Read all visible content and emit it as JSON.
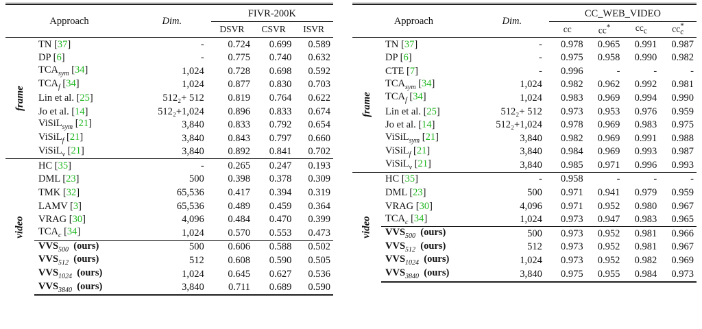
{
  "colors": {
    "citation": "#1fb61f",
    "rule": "#111111"
  },
  "left_table": {
    "header": {
      "approach": "Approach",
      "dim": "Dim.",
      "dataset": "FIVR-200K",
      "cols": [
        "DSVR",
        "CSVR",
        "ISVR"
      ]
    },
    "groups": {
      "frame": "frame",
      "video": "video"
    },
    "frame_rows": [
      {
        "name": "TN",
        "sub": "",
        "cite": "37",
        "dim": "-",
        "v": [
          "0.724",
          "0.699",
          "0.589"
        ],
        "bold": []
      },
      {
        "name": "DP",
        "sub": "",
        "cite": "6",
        "dim": "-",
        "v": [
          "0.775",
          "0.740",
          "0.632"
        ],
        "bold": []
      },
      {
        "name": "TCA",
        "sub": "sym",
        "cite": "34",
        "dim": "1,024",
        "v": [
          "0.728",
          "0.698",
          "0.592"
        ],
        "bold": []
      },
      {
        "name": "TCA",
        "sub": "f",
        "cite": "34",
        "dim": "1,024",
        "v": [
          "0.877",
          "0.830",
          "0.703"
        ],
        "bold": [
          2
        ]
      },
      {
        "name": "Lin et al.",
        "sub": "",
        "cite": "25",
        "dim": "512₂+  512",
        "v": [
          "0.819",
          "0.764",
          "0.622"
        ],
        "bold": []
      },
      {
        "name": "Jo et al.",
        "sub": "",
        "cite": "14",
        "dim": "512₂+1,024",
        "v": [
          "0.896",
          "0.833",
          "0.674"
        ],
        "bold": [
          0
        ]
      },
      {
        "name": "ViSiL",
        "sub": "sym",
        "cite": "21",
        "dim": "3,840",
        "v": [
          "0.833",
          "0.792",
          "0.654"
        ],
        "bold": []
      },
      {
        "name": "ViSiL",
        "sub": "f",
        "cite": "21",
        "dim": "3,840",
        "v": [
          "0.843",
          "0.797",
          "0.660"
        ],
        "bold": []
      },
      {
        "name": "ViSiL",
        "sub": "v",
        "cite": "21",
        "dim": "3,840",
        "v": [
          "0.892",
          "0.841",
          "0.702"
        ],
        "bold": [
          1
        ]
      }
    ],
    "video_rows": [
      {
        "name": "HC",
        "sub": "",
        "cite": "35",
        "dim": "-",
        "v": [
          "0.265",
          "0.247",
          "0.193"
        ],
        "bold": []
      },
      {
        "name": "DML",
        "sub": "",
        "cite": "23",
        "dim": "500",
        "v": [
          "0.398",
          "0.378",
          "0.309"
        ],
        "bold": []
      },
      {
        "name": "TMK",
        "sub": "",
        "cite": "32",
        "dim": "65,536",
        "v": [
          "0.417",
          "0.394",
          "0.319"
        ],
        "bold": []
      },
      {
        "name": "LAMV",
        "sub": "",
        "cite": "3",
        "dim": "65,536",
        "v": [
          "0.489",
          "0.459",
          "0.364"
        ],
        "bold": []
      },
      {
        "name": "VRAG",
        "sub": "",
        "cite": "30",
        "dim": "4,096",
        "v": [
          "0.484",
          "0.470",
          "0.399"
        ],
        "bold": []
      },
      {
        "name": "TCA",
        "sub": "c",
        "cite": "34",
        "dim": "1,024",
        "v": [
          "0.570",
          "0.553",
          "0.473"
        ],
        "bold": []
      }
    ],
    "ours_rows": [
      {
        "name": "VVS",
        "sub": "500",
        "tag": "(ours)",
        "dim": "500",
        "v": [
          "0.606",
          "0.588",
          "0.502"
        ],
        "bold": []
      },
      {
        "name": "VVS",
        "sub": "512",
        "tag": "(ours)",
        "dim": "512",
        "v": [
          "0.608",
          "0.590",
          "0.505"
        ],
        "bold": []
      },
      {
        "name": "VVS",
        "sub": "1024",
        "tag": "(ours)",
        "dim": "1,024",
        "v": [
          "0.645",
          "0.627",
          "0.536"
        ],
        "bold": []
      },
      {
        "name": "VVS",
        "sub": "3840",
        "tag": "(ours)",
        "dim": "3,840",
        "v": [
          "0.711",
          "0.689",
          "0.590"
        ],
        "bold": [
          0,
          1,
          2
        ]
      }
    ]
  },
  "right_table": {
    "header": {
      "approach": "Approach",
      "dim": "Dim.",
      "dataset": "CC_WEB_VIDEO",
      "cols": [
        "cc",
        "cc*",
        "ccc",
        "cc*c"
      ]
    },
    "groups": {
      "frame": "frame",
      "video": "video"
    },
    "frame_rows": [
      {
        "name": "TN",
        "sub": "",
        "cite": "37",
        "dim": "-",
        "v": [
          "0.978",
          "0.965",
          "0.991",
          "0.987"
        ],
        "bold": []
      },
      {
        "name": "DP",
        "sub": "",
        "cite": "6",
        "dim": "-",
        "v": [
          "0.975",
          "0.958",
          "0.990",
          "0.982"
        ],
        "bold": []
      },
      {
        "name": "CTE",
        "sub": "",
        "cite": "7",
        "dim": "-",
        "v": [
          "0.996",
          "-",
          "-",
          "-"
        ],
        "bold": [
          0
        ]
      },
      {
        "name": "TCA",
        "sub": "sym",
        "cite": "34",
        "dim": "1,024",
        "v": [
          "0.982",
          "0.962",
          "0.992",
          "0.981"
        ],
        "bold": []
      },
      {
        "name": "TCA",
        "sub": "f",
        "cite": "34",
        "dim": "1,024",
        "v": [
          "0.983",
          "0.969",
          "0.994",
          "0.990"
        ],
        "bold": []
      },
      {
        "name": "Lin et al.",
        "sub": "",
        "cite": "25",
        "dim": "512₂+  512",
        "v": [
          "0.973",
          "0.953",
          "0.976",
          "0.959"
        ],
        "bold": []
      },
      {
        "name": "Jo et al.",
        "sub": "",
        "cite": "14",
        "dim": "512₂+1,024",
        "v": [
          "0.978",
          "0.969",
          "0.983",
          "0.975"
        ],
        "bold": []
      },
      {
        "name": "ViSiL",
        "sub": "sym",
        "cite": "21",
        "dim": "3,840",
        "v": [
          "0.982",
          "0.969",
          "0.991",
          "0.988"
        ],
        "bold": []
      },
      {
        "name": "ViSiL",
        "sub": "f",
        "cite": "21",
        "dim": "3,840",
        "v": [
          "0.984",
          "0.969",
          "0.993",
          "0.987"
        ],
        "bold": []
      },
      {
        "name": "ViSiL",
        "sub": "v",
        "cite": "21",
        "dim": "3,840",
        "v": [
          "0.985",
          "0.971",
          "0.996",
          "0.993"
        ],
        "bold": [
          1,
          2,
          3
        ]
      }
    ],
    "video_rows": [
      {
        "name": "HC",
        "sub": "",
        "cite": "35",
        "dim": "-",
        "v": [
          "0.958",
          "-",
          "-",
          "-"
        ],
        "bold": []
      },
      {
        "name": "DML",
        "sub": "",
        "cite": "23",
        "dim": "500",
        "v": [
          "0.971",
          "0.941",
          "0.979",
          "0.959"
        ],
        "bold": []
      },
      {
        "name": "VRAG",
        "sub": "",
        "cite": "30",
        "dim": "4,096",
        "v": [
          "0.971",
          "0.952",
          "0.980",
          "0.967"
        ],
        "bold": []
      },
      {
        "name": "TCA",
        "sub": "c",
        "cite": "34",
        "dim": "1,024",
        "v": [
          "0.973",
          "0.947",
          "0.983",
          "0.965"
        ],
        "bold": []
      }
    ],
    "ours_rows": [
      {
        "name": "VVS",
        "sub": "500",
        "tag": "(ours)",
        "dim": "500",
        "v": [
          "0.973",
          "0.952",
          "0.981",
          "0.966"
        ],
        "bold": []
      },
      {
        "name": "VVS",
        "sub": "512",
        "tag": "(ours)",
        "dim": "512",
        "v": [
          "0.973",
          "0.952",
          "0.981",
          "0.967"
        ],
        "bold": []
      },
      {
        "name": "VVS",
        "sub": "1024",
        "tag": "(ours)",
        "dim": "1,024",
        "v": [
          "0.973",
          "0.952",
          "0.982",
          "0.969"
        ],
        "bold": []
      },
      {
        "name": "VVS",
        "sub": "3840",
        "tag": "(ours)",
        "dim": "3,840",
        "v": [
          "0.975",
          "0.955",
          "0.984",
          "0.973"
        ],
        "bold": [
          0,
          1,
          2,
          3
        ]
      }
    ]
  }
}
